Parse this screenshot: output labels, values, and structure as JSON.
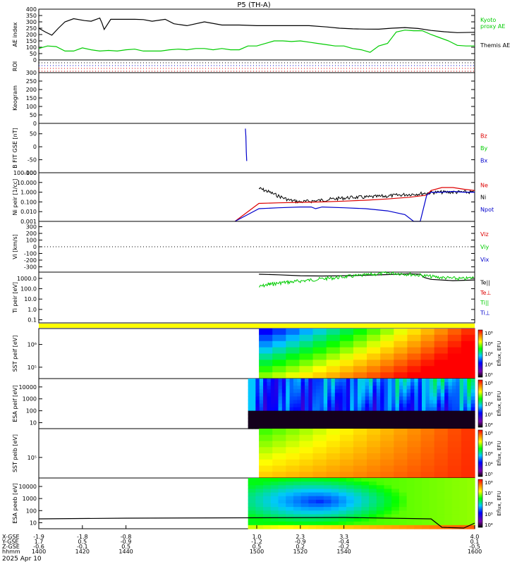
{
  "title": "P5 (TH-A)",
  "date_label": "2025 Apr 10",
  "colorbar_label": "Eflux, EFU",
  "chart_data": [
    {
      "panel": "ae",
      "type": "line",
      "ylabel": "AE index",
      "yticks": [
        "400",
        "350",
        "300",
        "250",
        "200",
        "150",
        "100",
        "50",
        "0"
      ],
      "ylim": [
        0,
        400
      ],
      "legend": [
        {
          "name": "Kyoto",
          "color": "#00cc00"
        },
        {
          "name": "proxy AE",
          "color": "#00cc00"
        },
        {
          "name": "Themis AE",
          "color": "#000000"
        }
      ],
      "series": [
        {
          "name": "Themis AE",
          "color": "#000000",
          "x": [
            1400,
            1403,
            1406,
            1409,
            1412,
            1416,
            1421,
            1424,
            1428,
            1429,
            1430,
            1433,
            1436,
            1444,
            1448,
            1452,
            1458,
            1462,
            1468,
            1476,
            1484,
            1492,
            1500,
            1508,
            1516,
            1524,
            1532,
            1538,
            1544,
            1550,
            1556,
            1562,
            1568,
            1574,
            1580,
            1586,
            1592,
            1600
          ],
          "y": [
            250,
            220,
            195,
            250,
            300,
            325,
            310,
            305,
            330,
            290,
            240,
            320,
            320,
            320,
            318,
            305,
            320,
            285,
            270,
            300,
            275,
            275,
            270,
            270,
            270,
            270,
            260,
            250,
            245,
            243,
            242,
            250,
            255,
            248,
            232,
            222,
            215,
            218
          ]
        },
        {
          "name": "Kyoto proxy AE",
          "color": "#00cc00",
          "x": [
            1400,
            1404,
            1408,
            1412,
            1416,
            1420,
            1424,
            1428,
            1432,
            1436,
            1440,
            1444,
            1448,
            1452,
            1456,
            1460,
            1464,
            1468,
            1472,
            1476,
            1480,
            1484,
            1488,
            1492,
            1496,
            1500,
            1504,
            1508,
            1512,
            1516,
            1520,
            1524,
            1528,
            1532,
            1536,
            1540,
            1544,
            1548,
            1552,
            1556,
            1560,
            1564,
            1568,
            1572,
            1576,
            1580,
            1584,
            1588,
            1592,
            1596,
            1600
          ],
          "y": [
            90,
            110,
            105,
            70,
            70,
            95,
            80,
            70,
            75,
            70,
            80,
            85,
            70,
            70,
            70,
            80,
            85,
            80,
            90,
            90,
            80,
            90,
            80,
            80,
            110,
            110,
            130,
            150,
            150,
            145,
            150,
            140,
            130,
            120,
            110,
            110,
            90,
            80,
            60,
            110,
            130,
            220,
            235,
            230,
            230,
            200,
            175,
            150,
            115,
            110,
            110
          ]
        }
      ]
    },
    {
      "panel": "roi",
      "type": "flags",
      "ylabel": "ROI",
      "rows": 4
    },
    {
      "panel": "keogram",
      "type": "line",
      "ylabel": "Keogram",
      "yticks": [
        "300",
        "250",
        "200",
        "150",
        "100",
        "50",
        "0"
      ],
      "ylim": [
        0,
        300
      ],
      "series": []
    },
    {
      "panel": "bfit",
      "type": "line",
      "ylabel": "B FIT GSE [nT]",
      "yticks": [
        "50",
        "0",
        "-50",
        "-100"
      ],
      "ylim": [
        -100,
        90
      ],
      "legend": [
        {
          "name": "Bz",
          "color": "#dd0000"
        },
        {
          "name": "By",
          "color": "#00cc00"
        },
        {
          "name": "Bx",
          "color": "#0000cc"
        }
      ],
      "series": [
        {
          "name": "Bx",
          "color": "#0000cc",
          "x": [
            1494.8,
            1495.0,
            1495.2,
            1495.4
          ],
          "y": [
            70,
            40,
            -20,
            -55
          ]
        }
      ]
    },
    {
      "panel": "ni",
      "type": "line",
      "ylabel": "Ni peir [1/cc]",
      "yscale": "log",
      "yticks": [
        "100.000",
        "10.000",
        "1.000",
        "0.100",
        "0.010",
        "0.001"
      ],
      "ylim": [
        0.001,
        100
      ],
      "legend": [
        {
          "name": "Ne",
          "color": "#dd0000"
        },
        {
          "name": "Ni",
          "color": "#000000"
        },
        {
          "name": "Npot",
          "color": "#0000cc"
        }
      ],
      "series": [
        {
          "name": "Ni",
          "color": "#000000",
          "x": [
            1501,
            1505,
            1510,
            1515,
            1520,
            1525,
            1530,
            1535,
            1540,
            1545,
            1550,
            1555,
            1560,
            1565,
            1570,
            1575,
            1580,
            1585,
            1590,
            1595,
            1600
          ],
          "y": [
            2.5,
            1.2,
            0.4,
            0.15,
            0.1,
            0.12,
            0.15,
            0.2,
            0.25,
            0.3,
            0.3,
            0.35,
            0.4,
            0.5,
            0.6,
            0.7,
            0.9,
            1.0,
            1.0,
            1.0,
            1.0
          ]
        },
        {
          "name": "Ne",
          "color": "#dd0000",
          "x": [
            1490,
            1501,
            1510,
            1520,
            1530,
            1540,
            1550,
            1560,
            1570,
            1578,
            1580,
            1585,
            1590,
            1595,
            1600
          ],
          "y": [
            0.001,
            0.07,
            0.08,
            0.09,
            0.1,
            0.12,
            0.15,
            0.2,
            0.3,
            0.5,
            1.5,
            3.0,
            3.0,
            2.0,
            1.5
          ]
        },
        {
          "name": "Npot",
          "color": "#0000cc",
          "x": [
            1490,
            1501,
            1510,
            1520,
            1525,
            1527,
            1530,
            1540,
            1550,
            1560,
            1568,
            1572,
            1575,
            1578,
            1580,
            1585,
            1590,
            1595,
            1600
          ],
          "y": [
            0.001,
            0.02,
            0.025,
            0.03,
            0.03,
            0.02,
            0.03,
            0.025,
            0.02,
            0.012,
            0.005,
            0.001,
            0.001,
            0.5,
            1.0,
            1.0,
            1.2,
            1.0,
            1.0
          ]
        }
      ]
    },
    {
      "panel": "vi",
      "type": "line",
      "ylabel": "Vi [km/s]",
      "yticks": [
        "300",
        "200",
        "100",
        "0",
        "-100",
        "-200",
        "-300"
      ],
      "ylim": [
        -380,
        380
      ],
      "legend": [
        {
          "name": "Viz",
          "color": "#dd0000"
        },
        {
          "name": "Viy",
          "color": "#00cc00"
        },
        {
          "name": "Vix",
          "color": "#0000cc"
        }
      ],
      "series": []
    },
    {
      "panel": "ti",
      "type": "line",
      "ylabel": "Ti peir [eV]",
      "yscale": "log",
      "yticks": [
        "1000.0",
        "100.0",
        "10.0",
        "1.0",
        "0.1"
      ],
      "ylim": [
        0.05,
        4000
      ],
      "legend": [
        {
          "name": "Te||",
          "color": "#000000"
        },
        {
          "name": "Te⊥",
          "color": "#dd0000"
        },
        {
          "name": "Ti||",
          "color": "#00cc00"
        },
        {
          "name": "Ti⊥",
          "color": "#0000cc"
        }
      ],
      "series": [
        {
          "name": "Te||",
          "color": "#000000",
          "x": [
            1501,
            1510,
            1520,
            1530,
            1540,
            1550,
            1560,
            1570,
            1575,
            1577,
            1580,
            1590,
            1600
          ],
          "y": [
            2500,
            2200,
            1800,
            1700,
            1800,
            2000,
            2300,
            2800,
            2500,
            1200,
            800,
            600,
            700
          ]
        },
        {
          "name": "Ti||",
          "color": "#00cc00",
          "x": [
            1501,
            1505,
            1508,
            1512,
            1516,
            1520,
            1525,
            1530,
            1535,
            1540,
            1545,
            1550,
            1555,
            1560,
            1565,
            1570,
            1575,
            1580,
            1585,
            1590,
            1595,
            1600
          ],
          "y": [
            150,
            250,
            300,
            400,
            450,
            550,
            700,
            900,
            1100,
            1400,
            1700,
            2000,
            2600,
            3200,
            3000,
            2500,
            2000,
            1500,
            1200,
            1000,
            900,
            1200
          ]
        }
      ]
    },
    {
      "panel": "sst_full",
      "type": "heatmap",
      "ylabel": "SST peif [eV]",
      "ytick_labels": [
        "10⁶",
        "10⁵"
      ],
      "xrange": [
        1501,
        1600
      ],
      "cbar_ticks": [
        "10⁸",
        "10⁴",
        "10⁶",
        "10⁴",
        "10⁵"
      ],
      "cbar_label": "Eflux, EFU"
    },
    {
      "panel": "esa_full",
      "type": "heatmap",
      "ylabel": "ESA peif [eV]",
      "ytick_labels": [
        "10000",
        "1000",
        "100",
        "10"
      ],
      "xrange": [
        1496,
        1600
      ],
      "cbar_ticks": [
        "10⁸",
        "10⁷",
        "10⁶",
        "10⁵",
        "10⁴"
      ],
      "cbar_label": "Eflux, EFU"
    },
    {
      "panel": "sst_burst",
      "type": "heatmap",
      "ylabel": "SST peib [eV]",
      "ytick_labels": [
        "10⁵"
      ],
      "xrange": [
        1501,
        1600
      ],
      "cbar_ticks": [
        "10⁶",
        "10⁴",
        "10⁶",
        "10⁴",
        "10⁵"
      ],
      "cbar_label": "Eflux, EFU"
    },
    {
      "panel": "esa_burst",
      "type": "heatmap",
      "ylabel": "ESA peeb [eV]",
      "ytick_labels": [
        "10000",
        "1000",
        "100",
        "10"
      ],
      "xrange": [
        1496,
        1600
      ],
      "cbar_ticks": [
        "10⁸",
        "10⁷",
        "10⁶",
        "10⁵",
        "10⁴"
      ],
      "cbar_label": "Eflux, EFU"
    }
  ],
  "x_axis": {
    "row_labels": [
      "X-GSE",
      "Y-GSE",
      "Z-GSE",
      "hhmm"
    ],
    "ticks": [
      {
        "time": 1400,
        "x": "-1.9",
        "y": "1.7",
        "z": "-0.6",
        "hhmm": "1400"
      },
      {
        "time": 1420,
        "x": "-1.8",
        "y": "0.5",
        "z": "-0.1",
        "hhmm": "1420"
      },
      {
        "time": 1440,
        "x": "-0.8",
        "y": "-0.9",
        "z": "0.5",
        "hhmm": "1440"
      },
      {
        "time": 1500,
        "x": "1.0",
        "y": "-1.2",
        "z": "0.5",
        "hhmm": "1500"
      },
      {
        "time": 1520,
        "x": "2.3",
        "y": "-0.9",
        "z": "0.2",
        "hhmm": "1520"
      },
      {
        "time": 1540,
        "x": "3.3",
        "y": "-0.4",
        "z": "-0.2",
        "hhmm": "1540"
      },
      {
        "time": 1600,
        "x": "4.0",
        "y": "0.1",
        "z": "-0.5",
        "hhmm": "1600"
      }
    ]
  }
}
